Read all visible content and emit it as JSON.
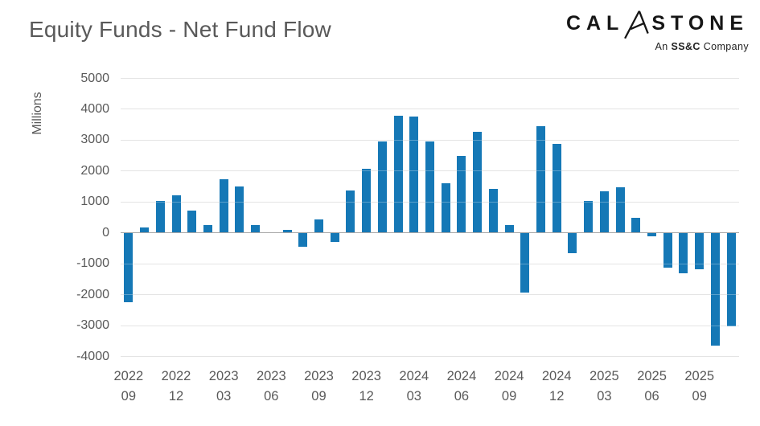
{
  "header": {
    "title": "Equity Funds - Net Fund Flow",
    "logo": {
      "brand_pre": "CAL",
      "brand_post": "STONE",
      "a_mark_icon": "calastone-arrow-a",
      "tagline_pre": "An ",
      "tagline_bold": "SS&C",
      "tagline_post": " Company"
    }
  },
  "colors": {
    "bar": "#1578b6",
    "grid": "#d9d9d9",
    "zero_axis": "#a6a6a6",
    "text": "#595959",
    "logo_text": "#161616"
  },
  "chart_data": {
    "type": "bar",
    "title": "Equity Funds - Net Fund Flow",
    "ylabel": "Millions",
    "xlabel": "",
    "ylim": [
      -4000,
      5000
    ],
    "ytick_step": 1000,
    "yticks": [
      5000,
      4000,
      3000,
      2000,
      1000,
      0,
      -1000,
      -2000,
      -3000,
      -4000
    ],
    "grid": true,
    "legend": "none",
    "x_tick_every": 3,
    "x_tick_labels": [
      [
        "2022",
        "09"
      ],
      [
        "2022",
        "12"
      ],
      [
        "2023",
        "03"
      ],
      [
        "2023",
        "06"
      ],
      [
        "2023",
        "09"
      ],
      [
        "2023",
        "12"
      ],
      [
        "2024",
        "03"
      ],
      [
        "2024",
        "06"
      ],
      [
        "2024",
        "09"
      ],
      [
        "2024",
        "12"
      ],
      [
        "2025",
        "03"
      ],
      [
        "2025",
        "06"
      ],
      [
        "2025",
        "09"
      ]
    ],
    "categories": [
      "2022-09",
      "2022-10",
      "2022-11",
      "2022-12",
      "2023-01",
      "2023-02",
      "2023-03",
      "2023-04",
      "2023-05",
      "2023-06",
      "2023-07",
      "2023-08",
      "2023-09",
      "2023-10",
      "2023-11",
      "2023-12",
      "2024-01",
      "2024-02",
      "2024-03",
      "2024-04",
      "2024-05",
      "2024-06",
      "2024-07",
      "2024-08",
      "2024-09",
      "2024-10",
      "2024-11",
      "2024-12",
      "2025-01",
      "2025-02",
      "2025-03",
      "2025-04",
      "2025-05",
      "2025-06",
      "2025-07",
      "2025-08",
      "2025-09",
      "2025-10",
      "2025-11"
    ],
    "values": [
      -2250,
      150,
      1020,
      1200,
      710,
      240,
      1730,
      1500,
      240,
      0,
      80,
      -450,
      430,
      -310,
      1360,
      2060,
      2950,
      3790,
      3760,
      2950,
      1590,
      2470,
      3250,
      1410,
      230,
      -1940,
      3450,
      2860,
      -680,
      1020,
      1320,
      1460,
      470,
      -130,
      -1150,
      -1320,
      -1200,
      -3660,
      -3050
    ]
  }
}
